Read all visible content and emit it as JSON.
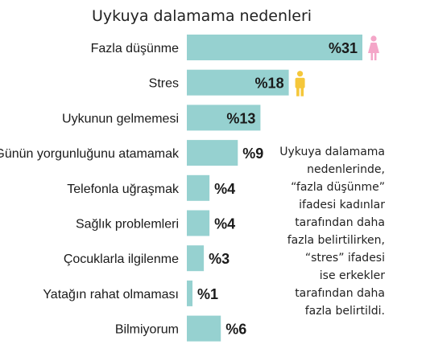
{
  "chart_data": {
    "type": "bar",
    "orientation": "horizontal",
    "title": "Uykuya dalamama nedenleri",
    "categories": [
      "Fazla düşünme",
      "Stres",
      "Uykunun gelmemesi",
      "Günün yorgunluğunu atamamak",
      "Telefonla uğraşmak",
      "Sağlık problemleri",
      "Çocuklarla ilgilenme",
      "Yatağın rahat olmaması",
      "Bilmiyorum"
    ],
    "values": [
      31,
      18,
      13,
      9,
      4,
      4,
      3,
      1,
      6
    ],
    "value_labels": [
      "%31",
      "%18",
      "%13",
      "%9",
      "%4",
      "%4",
      "%3",
      "%1",
      "%6"
    ],
    "xlim": [
      0,
      40
    ],
    "grid": false,
    "legend": "none",
    "bar_color": "#96d1d0",
    "annotations": [
      {
        "category": "Fazla düşünme",
        "icon": "woman-icon",
        "color": "#f4a6c8"
      },
      {
        "category": "Stres",
        "icon": "man-icon",
        "color": "#f5c73a"
      }
    ]
  },
  "note": "Uykuya dalamama\nnedenlerinde,\n“fazla düşünme”\nifadesi kadınlar\ntarafından daha\nfazla belirtilirken,\n“stres” ifadesi\nise erkekler\ntarafından daha\nfazla belirtildi."
}
